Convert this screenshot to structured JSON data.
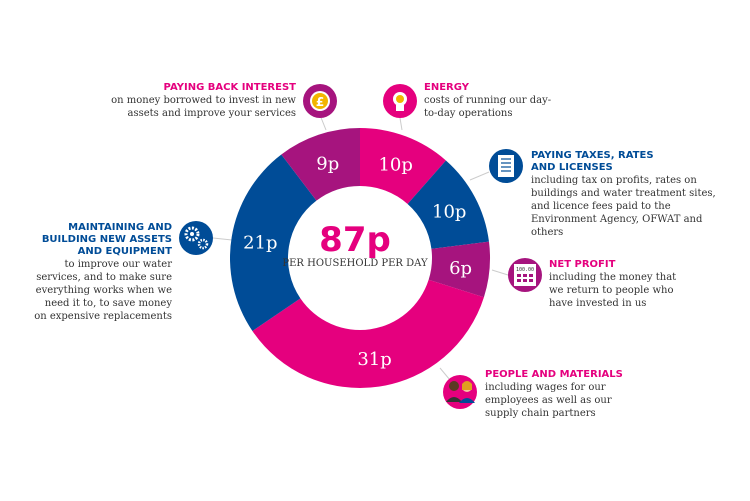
{
  "chart_data": {
    "type": "donut",
    "total_value": "87p",
    "total_caption": "PER HOUSEHOLD PER DAY",
    "slices": [
      {
        "label": "ENERGY",
        "value": 10,
        "display": "10p",
        "color": "#e5007e"
      },
      {
        "label": "PAYING TAXES, RATES AND LICENSES",
        "value": 10,
        "display": "10p",
        "color": "#004c97"
      },
      {
        "label": "NET PROFIT",
        "value": 6,
        "display": "6p",
        "color": "#a6147e"
      },
      {
        "label": "PEOPLE AND MATERIALS",
        "value": 31,
        "display": "31p",
        "color": "#e5007e"
      },
      {
        "label": "MAINTAINING AND BUILDING NEW ASSETS AND EQUIPMENT",
        "value": 21,
        "display": "21p",
        "color": "#004c97"
      },
      {
        "label": "PAYING BACK INTEREST",
        "value": 9,
        "display": "9p",
        "color": "#a6147e"
      }
    ]
  },
  "annotations": {
    "interest": {
      "title": "PAYING BACK INTEREST",
      "desc": "on money borrowed to invest in new assets and improve your services",
      "icon": "pound-coin-icon"
    },
    "energy": {
      "title": "ENERGY",
      "desc": "costs of running our day-to-day operations",
      "icon": "lightbulb-icon"
    },
    "taxes": {
      "title1": "PAYING TAXES, RATES",
      "title2": "AND LICENSES",
      "desc": "including tax on profits, rates on buildings and water treatment sites, and licence fees paid to the Environment Agency, OFWAT and others",
      "icon": "document-icon"
    },
    "profit": {
      "title": "NET PROFIT",
      "desc": "including the money that we return to people who have invested in us",
      "icon": "calculator-icon",
      "icon_text": "100.00"
    },
    "people": {
      "title": "PEOPLE AND MATERIALS",
      "desc": "including wages for our employees as well as our supply chain partners",
      "icon": "people-icon"
    },
    "maintaining": {
      "title1": "MAINTAINING AND",
      "title2": "BUILDING NEW ASSETS",
      "title3": "AND EQUIPMENT",
      "desc": "to improve our water services, and to make sure everything works when we need it to, to save money on expensive replacements",
      "icon": "gears-icon"
    }
  }
}
